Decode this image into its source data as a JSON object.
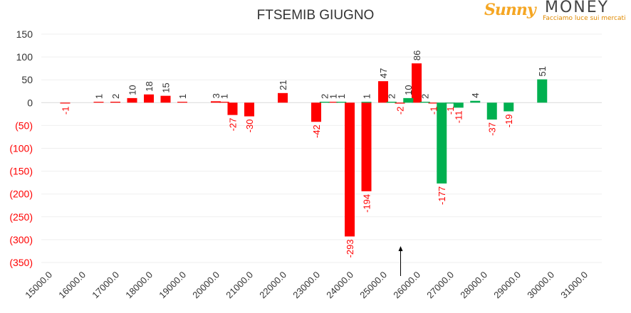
{
  "header": {
    "title": "FTSEMIB GIUGNO"
  },
  "logo": {
    "brand_a": "Sunny",
    "brand_b": "MONEY",
    "tagline": "Facciamo luce sui mercati"
  },
  "colors": {
    "red": "#ff0000",
    "green": "#00b050",
    "negative_text": "#ff0000",
    "axis_text": "#333333"
  },
  "chart_data": {
    "type": "bar",
    "title": "FTSEMIB GIUGNO",
    "xlabel": "",
    "ylabel": "",
    "ylim": [
      -350,
      150
    ],
    "xlim": [
      15000,
      31000
    ],
    "y_ticks": [
      150,
      100,
      50,
      0,
      -50,
      -100,
      -150,
      -200,
      -250,
      -300,
      -350
    ],
    "y_tick_labels": [
      "150",
      "100",
      "50",
      "0",
      "(50)",
      "(100)",
      "(150)",
      "(200)",
      "(250)",
      "(300)",
      "(350)"
    ],
    "x_ticks": [
      15000,
      16000,
      17000,
      18000,
      19000,
      20000,
      21000,
      22000,
      23000,
      24000,
      25000,
      26000,
      27000,
      28000,
      29000,
      30000,
      31000
    ],
    "x_tick_labels": [
      "15000.0",
      "16000.0",
      "17000.0",
      "18000.0",
      "19000.0",
      "20000.0",
      "21000.0",
      "22000.0",
      "23000.0",
      "24000.0",
      "25000.0",
      "26000.0",
      "27000.0",
      "28000.0",
      "29000.0",
      "30000.0",
      "31000.0"
    ],
    "grid": true,
    "marker_strike": 25500,
    "series": [
      {
        "color": "#ff0000",
        "points": [
          {
            "x": 15500,
            "y": -1
          },
          {
            "x": 16500,
            "y": 1
          },
          {
            "x": 17000,
            "y": 2
          },
          {
            "x": 17500,
            "y": 10
          },
          {
            "x": 18000,
            "y": 18
          },
          {
            "x": 18500,
            "y": 15
          },
          {
            "x": 19000,
            "y": 1
          },
          {
            "x": 20000,
            "y": 3
          },
          {
            "x": 20250,
            "y": 1
          },
          {
            "x": 20500,
            "y": -27
          },
          {
            "x": 21000,
            "y": -30
          },
          {
            "x": 22000,
            "y": 21
          },
          {
            "x": 23000,
            "y": -42
          },
          {
            "x": 23500,
            "y": 1
          },
          {
            "x": 24000,
            "y": -293
          },
          {
            "x": 24500,
            "y": -194
          },
          {
            "x": 25000,
            "y": 47
          },
          {
            "x": 25500,
            "y": -2
          },
          {
            "x": 26000,
            "y": 86
          },
          {
            "x": 26500,
            "y": -1
          }
        ]
      },
      {
        "color": "#00b050",
        "points": [
          {
            "x": 23250,
            "y": 2
          },
          {
            "x": 23750,
            "y": 1
          },
          {
            "x": 24500,
            "y": 1
          },
          {
            "x": 25250,
            "y": 2
          },
          {
            "x": 25750,
            "y": 10
          },
          {
            "x": 26250,
            "y": 2
          },
          {
            "x": 26750,
            "y": -177
          },
          {
            "x": 27000,
            "y": -1
          },
          {
            "x": 27250,
            "y": -11
          },
          {
            "x": 27750,
            "y": 4
          },
          {
            "x": 28250,
            "y": -37
          },
          {
            "x": 28750,
            "y": -19
          },
          {
            "x": 29750,
            "y": 51
          }
        ]
      }
    ]
  }
}
